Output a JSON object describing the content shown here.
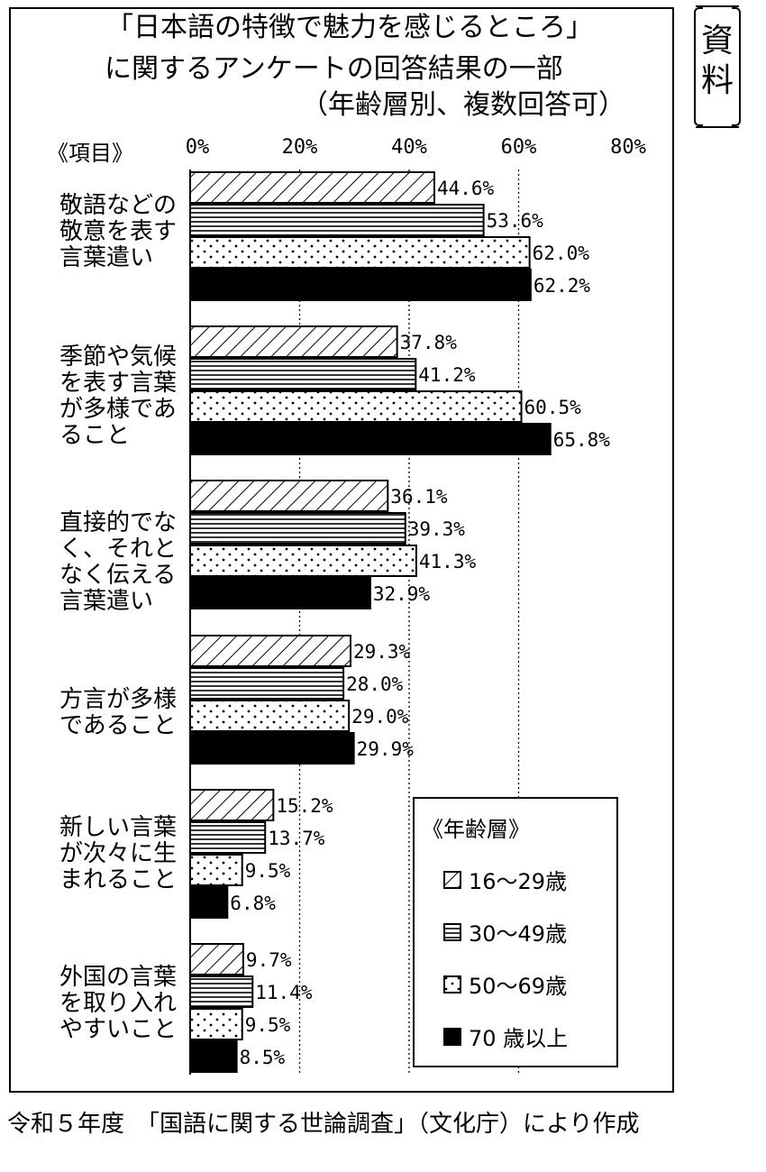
{
  "title_lines": [
    "「日本語の特徴で魅力を感じるところ」",
    "に関するアンケートの回答結果の一部",
    "（年齢層別、複数回答可）"
  ],
  "side_label": "〔資料〕",
  "side_label_chars": [
    "資",
    "料"
  ],
  "items_header": "《項目》",
  "footer": "令和５年度　「国語に関する世論調査」（文化庁）により作成",
  "chart_data": {
    "type": "bar",
    "orientation": "horizontal",
    "title": "「日本語の特徴で魅力を感じるところ」に関するアンケートの回答結果の一部（年齢層別、複数回答可）",
    "categories": [
      "敬語などの\n敬意を表す\n言葉遣い",
      "季節や気候\nを表す言葉\nが多様であ\nること",
      "直接的でな\nく、それと\nなく伝える\n言葉遣い",
      "方言が多様\nであること",
      "新しい言葉\nが次々に生\nまれること",
      "外国の言葉\nを取り入れ\nやすいこと"
    ],
    "series": [
      {
        "name": "16～29歳",
        "pattern": "diagonal-hatch",
        "values": [
          44.6,
          37.8,
          36.1,
          29.3,
          15.2,
          9.7
        ]
      },
      {
        "name": "30～49歳",
        "pattern": "horizontal-lines",
        "values": [
          53.6,
          41.2,
          39.3,
          28.0,
          13.7,
          11.4
        ]
      },
      {
        "name": "50～69歳",
        "pattern": "dots",
        "values": [
          62.0,
          60.5,
          41.3,
          29.0,
          9.5,
          9.5
        ]
      },
      {
        "name": "70 歳以上",
        "pattern": "solid-black",
        "values": [
          62.2,
          65.8,
          32.9,
          29.9,
          6.8,
          8.5
        ]
      }
    ],
    "value_labels": [
      [
        "44.6%",
        "53.6%",
        "62.0%",
        "62.2%"
      ],
      [
        "37.8%",
        "41.2%",
        "60.5%",
        "65.8%"
      ],
      [
        "36.1%",
        "39.3%",
        "41.3%",
        "32.9%"
      ],
      [
        "29.3%",
        "28.0%",
        "29.0%",
        "29.9%"
      ],
      [
        "15.2%",
        "13.7%",
        "9.5%",
        "6.8%"
      ],
      [
        "9.7%",
        "11.4%",
        "9.5%",
        "8.5%"
      ]
    ],
    "x_ticks": [
      "0%",
      "20%",
      "40%",
      "60%",
      "80%"
    ],
    "xlim": [
      0,
      80
    ],
    "grid": "vertical-dashed",
    "legend_title": "《年齢層》",
    "legend_position": "bottom-right"
  }
}
